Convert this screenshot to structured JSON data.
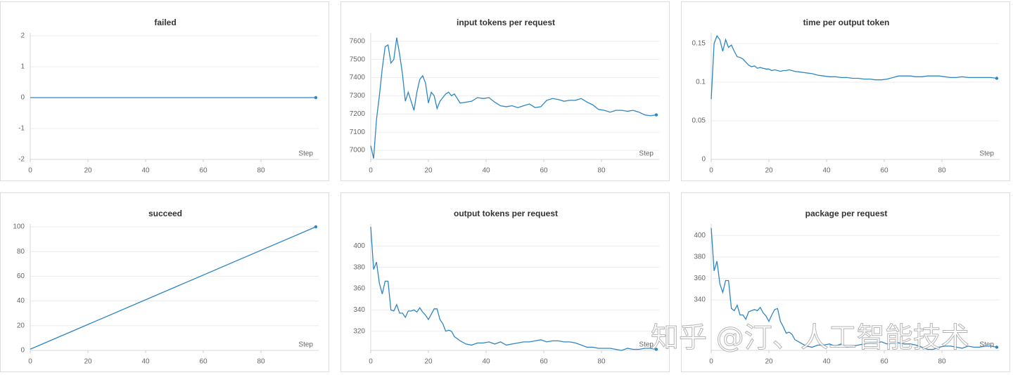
{
  "watermark": "知乎 @汀、人工智能技术",
  "chart_data": [
    {
      "type": "line",
      "title": "failed",
      "x_label": "Step",
      "color": "#2e86c1",
      "grid": true,
      "x": [
        0,
        99
      ],
      "values": [
        0,
        0
      ],
      "xlim": [
        0,
        100
      ],
      "xticks": [
        0,
        20,
        40,
        60,
        80
      ],
      "ylim": [
        -2,
        2
      ],
      "yticks": [
        -2,
        -1,
        0,
        1,
        2
      ]
    },
    {
      "type": "line",
      "title": "input tokens per request",
      "x_label": "Step",
      "color": "#2e86c1",
      "grid": true,
      "x": [
        0,
        1,
        2,
        3,
        4,
        5,
        6,
        7,
        8,
        9,
        10,
        11,
        12,
        13,
        14,
        15,
        16,
        17,
        18,
        19,
        20,
        21,
        22,
        23,
        24,
        25,
        26,
        27,
        28,
        29,
        31,
        33,
        35,
        37,
        39,
        41,
        43,
        45,
        47,
        49,
        51,
        53,
        55,
        57,
        59,
        61,
        63,
        65,
        67,
        69,
        71,
        73,
        75,
        77,
        79,
        81,
        83,
        85,
        87,
        89,
        91,
        93,
        95,
        97,
        99
      ],
      "values": [
        7025,
        6955,
        7170,
        7300,
        7450,
        7570,
        7580,
        7480,
        7500,
        7620,
        7530,
        7420,
        7270,
        7320,
        7270,
        7220,
        7320,
        7390,
        7410,
        7370,
        7260,
        7320,
        7300,
        7230,
        7270,
        7290,
        7310,
        7320,
        7300,
        7310,
        7260,
        7265,
        7270,
        7290,
        7285,
        7290,
        7265,
        7245,
        7240,
        7245,
        7235,
        7245,
        7255,
        7235,
        7240,
        7275,
        7285,
        7280,
        7270,
        7275,
        7275,
        7285,
        7265,
        7250,
        7225,
        7220,
        7210,
        7220,
        7220,
        7215,
        7220,
        7210,
        7195,
        7190,
        7195
      ],
      "xlim": [
        0,
        100
      ],
      "xticks": [
        0,
        20,
        40,
        60,
        80
      ],
      "ylim": [
        6950,
        7630
      ],
      "yticks": [
        7000,
        7100,
        7200,
        7300,
        7400,
        7500,
        7600
      ]
    },
    {
      "type": "line",
      "title": "time per output token",
      "x_label": "Step",
      "color": "#2e86c1",
      "grid": true,
      "x": [
        0,
        1,
        2,
        3,
        4,
        5,
        6,
        7,
        8,
        9,
        10,
        11,
        12,
        13,
        14,
        15,
        16,
        17,
        18,
        19,
        20,
        21,
        22,
        23,
        24,
        25,
        26,
        27,
        28,
        29,
        31,
        33,
        35,
        37,
        39,
        41,
        43,
        45,
        47,
        49,
        51,
        53,
        55,
        57,
        59,
        61,
        63,
        65,
        67,
        69,
        71,
        73,
        75,
        77,
        79,
        81,
        83,
        85,
        87,
        89,
        91,
        93,
        95,
        97,
        99
      ],
      "values": [
        0.078,
        0.15,
        0.16,
        0.155,
        0.14,
        0.155,
        0.145,
        0.148,
        0.14,
        0.133,
        0.132,
        0.13,
        0.126,
        0.122,
        0.12,
        0.121,
        0.118,
        0.119,
        0.118,
        0.117,
        0.117,
        0.115,
        0.116,
        0.115,
        0.114,
        0.115,
        0.115,
        0.116,
        0.115,
        0.114,
        0.113,
        0.112,
        0.111,
        0.109,
        0.108,
        0.107,
        0.107,
        0.106,
        0.106,
        0.105,
        0.105,
        0.104,
        0.104,
        0.103,
        0.103,
        0.104,
        0.106,
        0.108,
        0.108,
        0.108,
        0.107,
        0.107,
        0.108,
        0.108,
        0.108,
        0.107,
        0.106,
        0.106,
        0.107,
        0.106,
        0.106,
        0.106,
        0.106,
        0.106,
        0.105
      ],
      "xlim": [
        0,
        100
      ],
      "xticks": [
        0,
        20,
        40,
        60,
        80
      ],
      "ylim": [
        0,
        0.16
      ],
      "yticks": [
        0,
        0.05,
        0.1,
        0.15
      ]
    },
    {
      "type": "line",
      "title": "succeed",
      "x_label": "Step",
      "color": "#2e86c1",
      "grid": true,
      "x": [
        0,
        99
      ],
      "values": [
        1,
        100
      ],
      "xlim": [
        0,
        100
      ],
      "xticks": [
        0,
        20,
        40,
        60,
        80
      ],
      "ylim": [
        0,
        100
      ],
      "yticks": [
        0,
        20,
        40,
        60,
        80,
        100
      ]
    },
    {
      "type": "line",
      "title": "output tokens per request",
      "x_label": "Step",
      "color": "#2e86c1",
      "grid": true,
      "x": [
        0,
        1,
        2,
        3,
        4,
        5,
        6,
        7,
        8,
        9,
        10,
        11,
        12,
        13,
        14,
        15,
        16,
        17,
        18,
        19,
        20,
        21,
        22,
        23,
        24,
        25,
        26,
        27,
        28,
        29,
        31,
        33,
        35,
        37,
        39,
        41,
        43,
        45,
        47,
        49,
        51,
        53,
        55,
        57,
        59,
        61,
        63,
        65,
        67,
        69,
        71,
        73,
        75,
        77,
        79,
        81,
        83,
        85,
        87,
        89,
        91,
        93,
        95,
        97,
        99
      ],
      "values": [
        418,
        378,
        385,
        365,
        355,
        367,
        367,
        340,
        339,
        345,
        337,
        337,
        333,
        339,
        339,
        340,
        338,
        342,
        338,
        335,
        331,
        336,
        341,
        341,
        331,
        327,
        320,
        321,
        320,
        315,
        311,
        308,
        307,
        309,
        309,
        310,
        308,
        310,
        307,
        308,
        309,
        310,
        310,
        311,
        312,
        310,
        311,
        311,
        310,
        310,
        309,
        307,
        305,
        305,
        304,
        304,
        304,
        303,
        302,
        304,
        303,
        303,
        304,
        304,
        303
      ],
      "xlim": [
        0,
        100
      ],
      "xticks": [
        0,
        20,
        40,
        60,
        80
      ],
      "ylim": [
        302,
        418
      ],
      "yticks": [
        320,
        340,
        360,
        380,
        400
      ]
    },
    {
      "type": "line",
      "title": "package per request",
      "x_label": "Step",
      "color": "#2e86c1",
      "grid": true,
      "x": [
        0,
        1,
        2,
        3,
        4,
        5,
        6,
        7,
        8,
        9,
        10,
        11,
        12,
        13,
        14,
        15,
        16,
        17,
        18,
        19,
        20,
        21,
        22,
        23,
        24,
        25,
        26,
        27,
        28,
        29,
        31,
        33,
        35,
        37,
        39,
        41,
        43,
        45,
        47,
        49,
        51,
        53,
        55,
        57,
        59,
        61,
        63,
        65,
        67,
        69,
        71,
        73,
        75,
        77,
        79,
        81,
        83,
        85,
        87,
        89,
        91,
        93,
        95,
        97,
        99
      ],
      "values": [
        407,
        367,
        376,
        355,
        347,
        358,
        358,
        332,
        330,
        335,
        326,
        326,
        322,
        329,
        330,
        331,
        330,
        333,
        328,
        325,
        320,
        326,
        331,
        332,
        320,
        315,
        309,
        310,
        308,
        303,
        300,
        297,
        296,
        298,
        298,
        299,
        297,
        299,
        296,
        297,
        298,
        299,
        300,
        300,
        301,
        299,
        300,
        300,
        299,
        299,
        298,
        296,
        294,
        294,
        296,
        297,
        297,
        296,
        295,
        297,
        296,
        296,
        297,
        297,
        296
      ],
      "xlim": [
        0,
        100
      ],
      "xticks": [
        0,
        20,
        40,
        60,
        80
      ],
      "ylim": [
        293,
        408
      ],
      "yticks": [
        340,
        360,
        380,
        400
      ]
    }
  ]
}
